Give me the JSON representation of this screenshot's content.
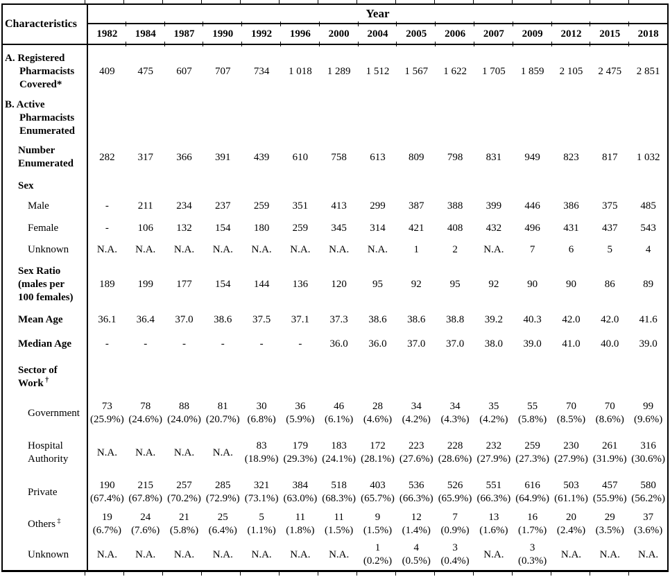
{
  "table": {
    "corner_header": "Characteristics",
    "year_header": "Year",
    "years": [
      "1982",
      "1984",
      "1987",
      "1990",
      "1992",
      "1996",
      "2000",
      "2004",
      "2005",
      "2006",
      "2007",
      "2009",
      "2012",
      "2015",
      "2018"
    ],
    "rows": [
      {
        "id": "registered-pharmacists",
        "label_lines": [
          "A. Registered",
          "Pharmacists",
          "Covered*"
        ],
        "bold": true,
        "indent": 0,
        "hang": true,
        "values": [
          "409",
          "475",
          "607",
          "707",
          "734",
          "1 018",
          "1 289",
          "1 512",
          "1 567",
          "1 622",
          "1 705",
          "1 859",
          "2 105",
          "2 475",
          "2 851"
        ]
      },
      {
        "id": "active-pharmacists",
        "label_lines": [
          "B. Active",
          "Pharmacists",
          "Enumerated"
        ],
        "bold": true,
        "indent": 0,
        "hang": true,
        "values": null
      },
      {
        "id": "number-enumerated",
        "label_lines": [
          "Number",
          "Enumerated"
        ],
        "bold": true,
        "indent": 1,
        "values": [
          "282",
          "317",
          "366",
          "391",
          "439",
          "610",
          "758",
          "613",
          "809",
          "798",
          "831",
          "949",
          "823",
          "817",
          "1 032"
        ]
      },
      {
        "id": "sex",
        "label_lines": [
          "Sex"
        ],
        "bold": true,
        "indent": 1,
        "values": null
      },
      {
        "id": "male",
        "label_lines": [
          "Male"
        ],
        "bold": false,
        "indent": 2,
        "values": [
          "-",
          "211",
          "234",
          "237",
          "259",
          "351",
          "413",
          "299",
          "387",
          "388",
          "399",
          "446",
          "386",
          "375",
          "485"
        ]
      },
      {
        "id": "female",
        "label_lines": [
          "Female"
        ],
        "bold": false,
        "indent": 2,
        "values": [
          "-",
          "106",
          "132",
          "154",
          "180",
          "259",
          "345",
          "314",
          "421",
          "408",
          "432",
          "496",
          "431",
          "437",
          "543"
        ]
      },
      {
        "id": "sex-unknown",
        "label_lines": [
          "Unknown"
        ],
        "bold": false,
        "indent": 2,
        "values": [
          "N.A.",
          "N.A.",
          "N.A.",
          "N.A.",
          "N.A.",
          "N.A.",
          "N.A.",
          "N.A.",
          "1",
          "2",
          "N.A.",
          "7",
          "6",
          "5",
          "4"
        ]
      },
      {
        "id": "sex-ratio",
        "label_lines": [
          "Sex Ratio",
          "(males per",
          "100 females)"
        ],
        "bold": true,
        "indent": 1,
        "values": [
          "189",
          "199",
          "177",
          "154",
          "144",
          "136",
          "120",
          "95",
          "92",
          "95",
          "92",
          "90",
          "90",
          "86",
          "89"
        ]
      },
      {
        "id": "mean-age",
        "label_lines": [
          "Mean Age"
        ],
        "bold": true,
        "indent": 1,
        "values": [
          "36.1",
          "36.4",
          "37.0",
          "38.6",
          "37.5",
          "37.1",
          "37.3",
          "38.6",
          "38.6",
          "38.8",
          "39.2",
          "40.3",
          "42.0",
          "42.0",
          "41.6"
        ]
      },
      {
        "id": "median-age",
        "label_lines": [
          "Median Age"
        ],
        "bold": true,
        "indent": 1,
        "values": [
          "-",
          "-",
          "-",
          "-",
          "-",
          "-",
          "36.0",
          "36.0",
          "37.0",
          "37.0",
          "38.0",
          "39.0",
          "41.0",
          "40.0",
          "39.0"
        ]
      },
      {
        "id": "sector-of-work",
        "label_lines": [
          "Sector of",
          "Work"
        ],
        "label_sup": "†",
        "bold": true,
        "indent": 1,
        "values": null
      },
      {
        "id": "government",
        "label_lines": [
          "Government"
        ],
        "bold": false,
        "indent": 2,
        "values": [
          "73",
          "78",
          "88",
          "81",
          "30",
          "36",
          "46",
          "28",
          "34",
          "34",
          "35",
          "55",
          "70",
          "70",
          "99"
        ],
        "sub": [
          "(25.9%)",
          "(24.6%)",
          "(24.0%)",
          "(20.7%)",
          "(6.8%)",
          "(5.9%)",
          "(6.1%)",
          "(4.6%)",
          "(4.2%)",
          "(4.3%)",
          "(4.2%)",
          "(5.8%)",
          "(8.5%)",
          "(8.6%)",
          "(9.6%)"
        ]
      },
      {
        "id": "hospital-authority",
        "label_lines": [
          "Hospital",
          "Authority"
        ],
        "bold": false,
        "indent": 2,
        "values": [
          "N.A.",
          "N.A.",
          "N.A.",
          "N.A.",
          "83",
          "179",
          "183",
          "172",
          "223",
          "228",
          "232",
          "259",
          "230",
          "261",
          "316"
        ],
        "sub": [
          "",
          "",
          "",
          "",
          "(18.9%)",
          "(29.3%)",
          "(24.1%)",
          "(28.1%)",
          "(27.6%)",
          "(28.6%)",
          "(27.9%)",
          "(27.3%)",
          "(27.9%)",
          "(31.9%)",
          "(30.6%)"
        ]
      },
      {
        "id": "private",
        "label_lines": [
          "Private"
        ],
        "bold": false,
        "indent": 2,
        "values": [
          "190",
          "215",
          "257",
          "285",
          "321",
          "384",
          "518",
          "403",
          "536",
          "526",
          "551",
          "616",
          "503",
          "457",
          "580"
        ],
        "sub": [
          "(67.4%)",
          "(67.8%)",
          "(70.2%)",
          "(72.9%)",
          "(73.1%)",
          "(63.0%)",
          "(68.3%)",
          "(65.7%)",
          "(66.3%)",
          "(65.9%)",
          "(66.3%)",
          "(64.9%)",
          "(61.1%)",
          "(55.9%)",
          "(56.2%)"
        ]
      },
      {
        "id": "others",
        "label_lines": [
          "Others"
        ],
        "label_sup": "‡",
        "bold": false,
        "indent": 2,
        "values": [
          "19",
          "24",
          "21",
          "25",
          "5",
          "11",
          "11",
          "9",
          "12",
          "7",
          "13",
          "16",
          "20",
          "29",
          "37"
        ],
        "sub": [
          "(6.7%)",
          "(7.6%)",
          "(5.8%)",
          "(6.4%)",
          "(1.1%)",
          "(1.8%)",
          "(1.5%)",
          "(1.5%)",
          "(1.4%)",
          "(0.9%)",
          "(1.6%)",
          "(1.7%)",
          "(2.4%)",
          "(3.5%)",
          "(3.6%)"
        ]
      },
      {
        "id": "sector-unknown",
        "label_lines": [
          "Unknown"
        ],
        "bold": false,
        "indent": 2,
        "values": [
          "N.A.",
          "N.A.",
          "N.A.",
          "N.A.",
          "N.A.",
          "N.A.",
          "N.A.",
          "1",
          "4",
          "3",
          "N.A.",
          "3",
          "N.A.",
          "N.A.",
          "N.A."
        ],
        "sub": [
          "",
          "",
          "",
          "",
          "",
          "",
          "",
          "(0.2%)",
          "(0.5%)",
          "(0.4%)",
          "",
          "(0.3%)",
          "",
          "",
          ""
        ]
      }
    ]
  }
}
